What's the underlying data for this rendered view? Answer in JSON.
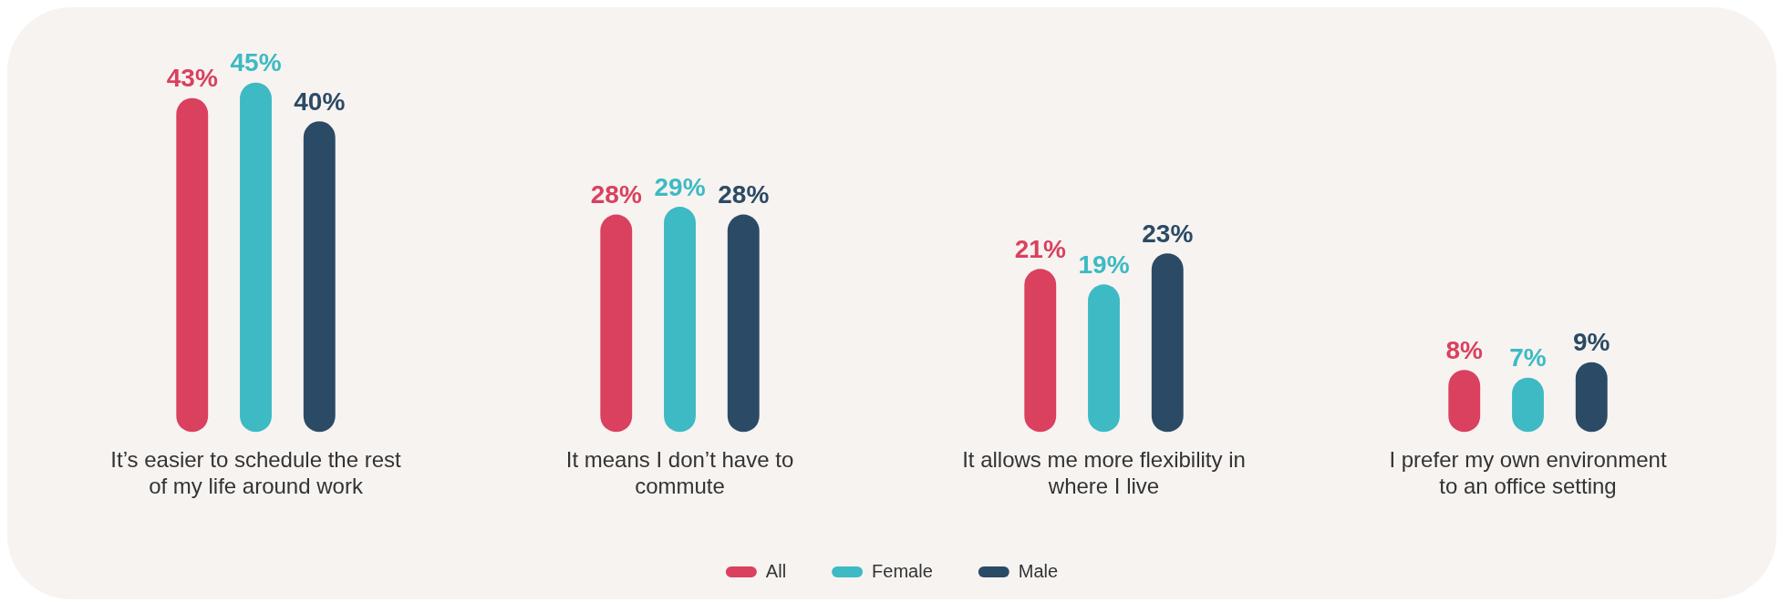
{
  "chart_data": {
    "type": "bar",
    "categories": [
      "It’s easier to schedule the rest of my life around work",
      "It means I don’t have to commute",
      "It allows me more flexibility in where I live",
      "I prefer my own environment to an office setting"
    ],
    "series": [
      {
        "name": "All",
        "color": "#d9415f",
        "values": [
          43,
          28,
          21,
          8
        ],
        "value_labels": [
          "43%",
          "28%",
          "21%",
          "8%"
        ]
      },
      {
        "name": "Female",
        "color": "#3dbac4",
        "values": [
          45,
          29,
          19,
          7
        ],
        "value_labels": [
          "45%",
          "29%",
          "19%",
          "7%"
        ]
      },
      {
        "name": "Male",
        "color": "#2b4a66",
        "values": [
          40,
          28,
          23,
          9
        ],
        "value_labels": [
          "40%",
          "28%",
          "23%",
          "9%"
        ]
      }
    ],
    "legend": "bottom",
    "grid": false
  }
}
